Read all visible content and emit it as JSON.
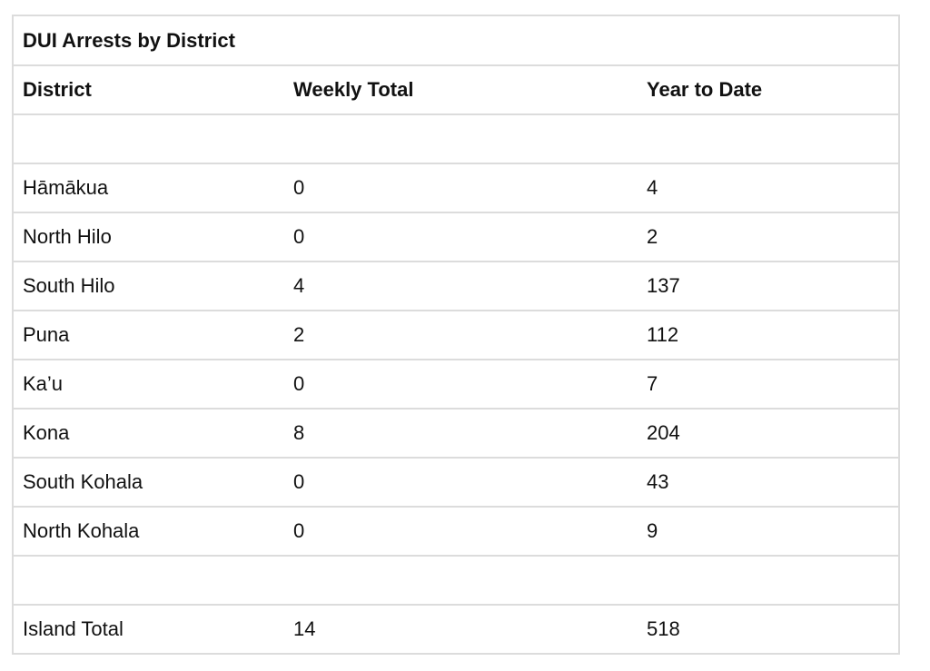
{
  "table": {
    "title": "DUI Arrests by District",
    "columns": [
      "District",
      "Weekly Total",
      "Year to Date"
    ],
    "rows": [
      [
        "",
        "",
        ""
      ],
      [
        "Hāmākua",
        "0",
        "4"
      ],
      [
        "North Hilo",
        "0",
        "2"
      ],
      [
        "South Hilo",
        "4",
        "137"
      ],
      [
        "Puna",
        "2",
        "112"
      ],
      [
        "Ka’u",
        "0",
        "7"
      ],
      [
        "Kona",
        "8",
        "204"
      ],
      [
        "South Kohala",
        "0",
        "43"
      ],
      [
        "North Kohala",
        "0",
        "9"
      ],
      [
        "",
        "",
        ""
      ],
      [
        "Island Total",
        "14",
        "518"
      ]
    ]
  }
}
